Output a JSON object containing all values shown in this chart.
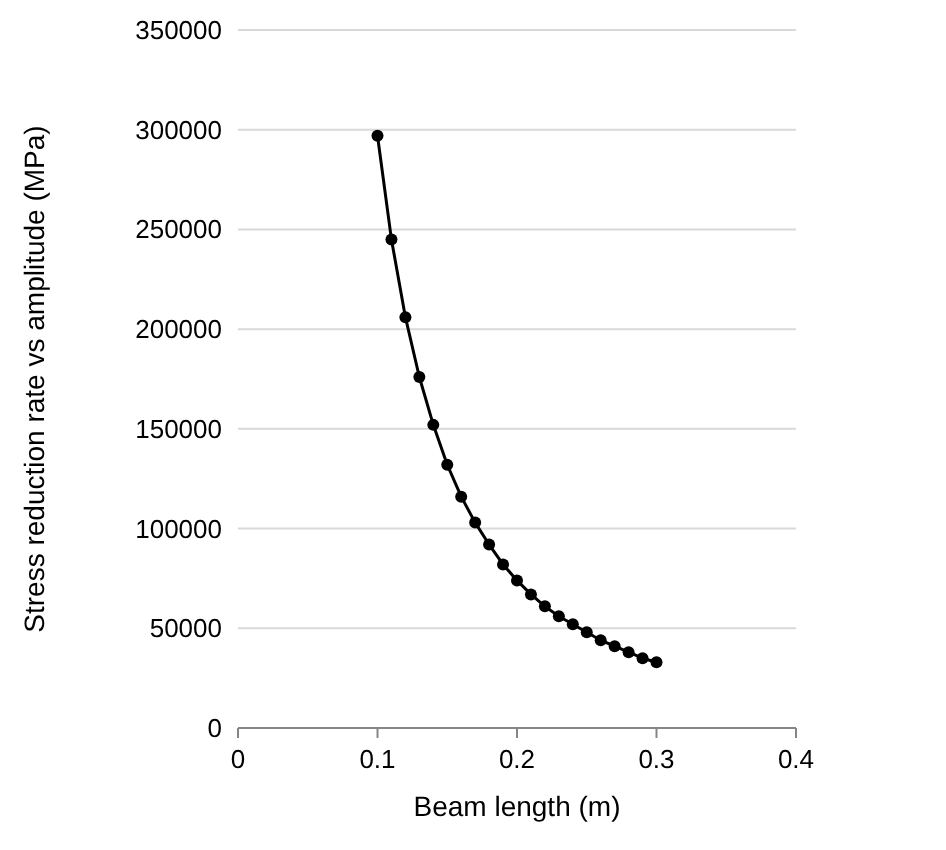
{
  "chart_data": {
    "type": "line",
    "xlabel": "Beam length (m)",
    "ylabel": "Stress reduction rate vs amplitude (MPa)",
    "x": [
      0.1,
      0.11,
      0.12,
      0.13,
      0.14,
      0.15,
      0.16,
      0.17,
      0.18,
      0.19,
      0.2,
      0.21,
      0.22,
      0.23,
      0.24,
      0.25,
      0.26,
      0.27,
      0.28,
      0.29,
      0.3
    ],
    "series": [
      {
        "color": "#000000",
        "values": [
          297000,
          245000,
          206000,
          176000,
          152000,
          132000,
          116000,
          103000,
          92000,
          82000,
          74000,
          67000,
          61000,
          56000,
          52000,
          48000,
          44000,
          41000,
          38000,
          35000,
          33000
        ]
      }
    ],
    "xlim": [
      0,
      0.4
    ],
    "xticks": [
      0,
      0.1,
      0.2,
      0.3,
      0.4
    ],
    "ylim": [
      0,
      350000
    ],
    "yticks": [
      0,
      50000,
      100000,
      150000,
      200000,
      250000,
      300000,
      350000
    ],
    "grid": "y",
    "marker": "circle",
    "line_style": "solid"
  }
}
